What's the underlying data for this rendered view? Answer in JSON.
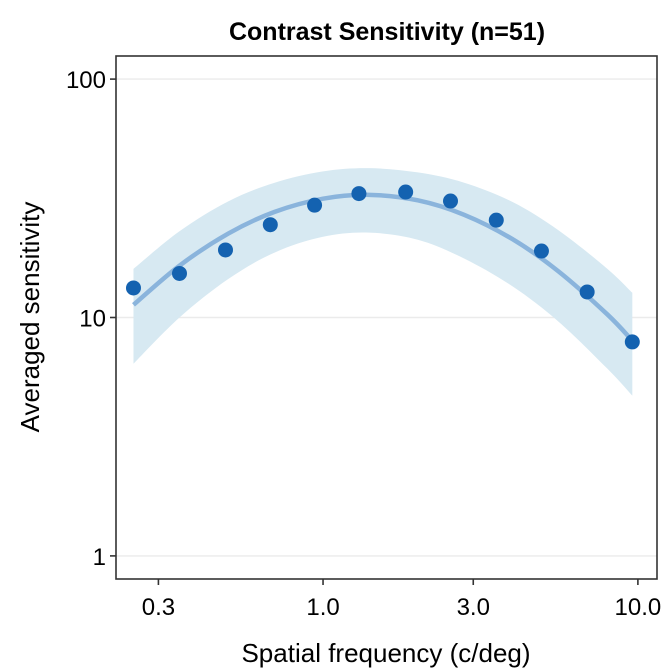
{
  "chart_data": {
    "type": "scatter",
    "title": "Contrast Sensitivity (n=51)",
    "xlabel": "Spatial frequency (c/deg)",
    "ylabel": "Averaged sensitivity",
    "x_scale": "log10",
    "y_scale": "log10",
    "xlim": [
      0.22,
      11.5
    ],
    "ylim": [
      0.8,
      125
    ],
    "x_ticks": [
      0.3,
      1.0,
      3.0,
      10.0
    ],
    "x_tick_labels": [
      "0.3",
      "1.0",
      "3.0",
      "10.0"
    ],
    "y_ticks": [
      1,
      10,
      100
    ],
    "y_tick_labels": [
      "1",
      "10",
      "100"
    ],
    "grid": "horizontal major",
    "legend": "none",
    "series": [
      {
        "name": "Averaged sensitivity",
        "kind": "points",
        "color": "#1462b0",
        "x": [
          0.25,
          0.35,
          0.49,
          0.68,
          0.94,
          1.3,
          1.83,
          2.54,
          3.55,
          4.94,
          6.9,
          9.6
        ],
        "y": [
          13.3,
          15.3,
          19.2,
          24.5,
          29.6,
          33.1,
          33.6,
          30.8,
          25.6,
          19.0,
          12.8,
          7.9
        ]
      },
      {
        "name": "Fitted curve",
        "kind": "line",
        "color": "#8ab4dc",
        "x": [
          0.25,
          0.35,
          0.5,
          0.7,
          1.0,
          1.4,
          2.0,
          2.8,
          4.0,
          5.6,
          8.0,
          9.6
        ],
        "y": [
          11.3,
          16.5,
          22.5,
          27.7,
          31.5,
          32.7,
          31.0,
          27.0,
          21.3,
          15.6,
          10.3,
          8.0
        ]
      },
      {
        "name": "Confidence band",
        "kind": "ribbon",
        "color": "#d7e9f2",
        "x": [
          0.25,
          0.35,
          0.5,
          0.7,
          1.0,
          1.4,
          2.0,
          2.8,
          4.0,
          5.6,
          8.0,
          9.6
        ],
        "lower": [
          6.4,
          10.0,
          14.5,
          18.7,
          21.8,
          22.7,
          21.2,
          17.7,
          13.5,
          9.6,
          6.1,
          4.7
        ],
        "upper": [
          16.0,
          23.0,
          30.7,
          36.7,
          41.0,
          42.3,
          40.6,
          36.8,
          30.5,
          23.2,
          16.0,
          12.7
        ]
      }
    ]
  }
}
